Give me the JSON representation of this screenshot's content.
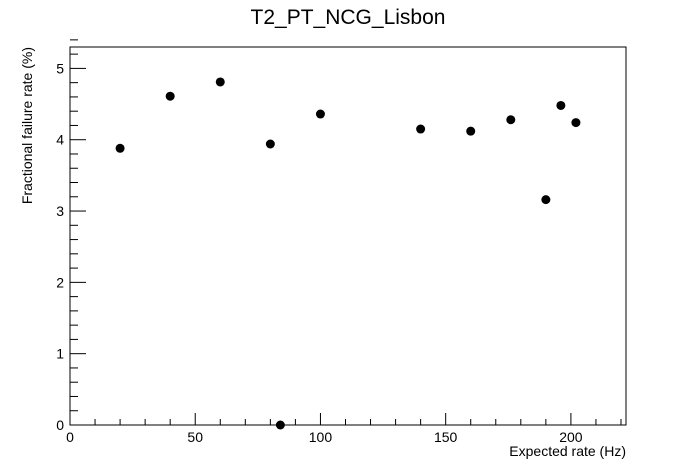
{
  "chart_data": {
    "type": "scatter",
    "title": "T2_PT_NCG_Lisbon",
    "xlabel": "Expected rate (Hz)",
    "ylabel": "Fractional failure rate (%)",
    "xlim": [
      0,
      222
    ],
    "ylim": [
      0,
      5.3
    ],
    "x_ticks": [
      0,
      50,
      100,
      150,
      200
    ],
    "y_ticks": [
      0,
      1,
      2,
      3,
      4,
      5
    ],
    "x_tick_labels": [
      "0",
      "50",
      "100",
      "150",
      "200"
    ],
    "y_tick_labels": [
      "0",
      "1",
      "2",
      "3",
      "4",
      "5"
    ],
    "grid": false,
    "marker_color": "#000000",
    "points": [
      {
        "x": 20,
        "y": 3.88
      },
      {
        "x": 40,
        "y": 4.61
      },
      {
        "x": 60,
        "y": 4.81
      },
      {
        "x": 80,
        "y": 3.94
      },
      {
        "x": 84,
        "y": 0.0
      },
      {
        "x": 100,
        "y": 4.36
      },
      {
        "x": 140,
        "y": 4.15
      },
      {
        "x": 160,
        "y": 4.12
      },
      {
        "x": 176,
        "y": 4.28
      },
      {
        "x": 190,
        "y": 3.16
      },
      {
        "x": 196,
        "y": 4.48
      },
      {
        "x": 202,
        "y": 4.24
      }
    ]
  }
}
